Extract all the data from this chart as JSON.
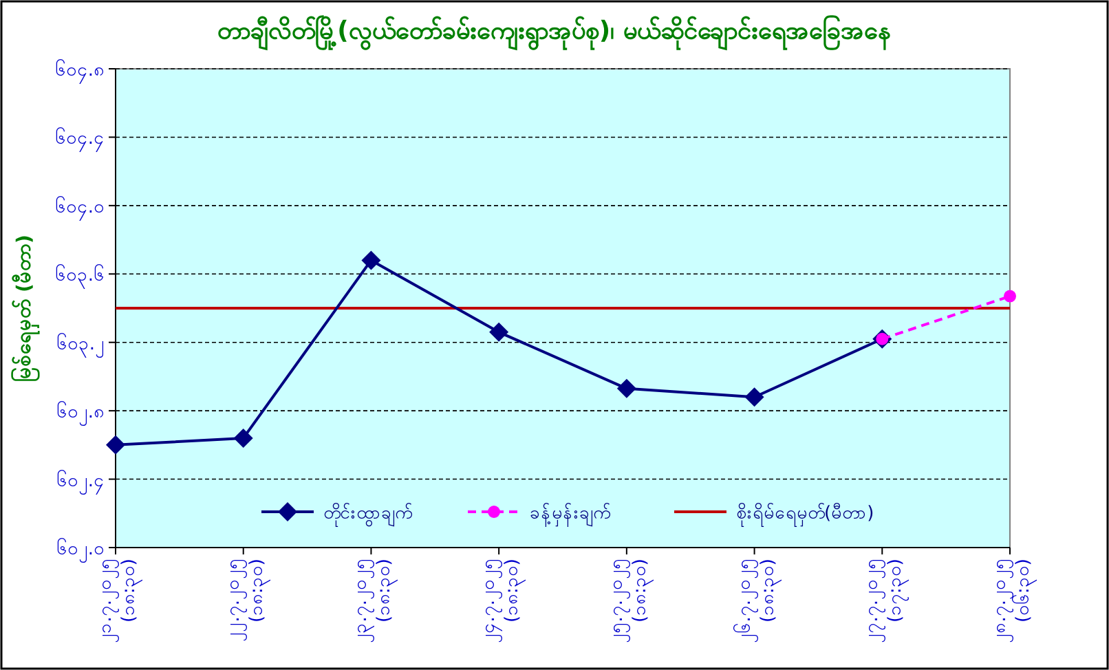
{
  "chart_data": {
    "type": "line",
    "title": "တာချီလိတ်မြို့(လွယ်တော်ခမ်းကျေးရွာအုပ်စု)၊ မယ်ဆိုင်ချောင်းရေအခြေအနေ",
    "ylabel": "မြစ်ရေမှတ် (မီတာ)",
    "categories": [
      "၂၁.၇.၂၀၂၅\n(၁၈:၃၀)",
      "၂၂.၇.၂၀၂၅\n(၁၈:၃၀)",
      "၂၃.၇.၂၀၂၅\n(၁၈:၃၀)",
      "၂၄.၇.၂၀၂၅\n(၁၈:၃၀)",
      "၂၅.၇.၂၀၂၅\n(၁၈:၃၀)",
      "၂၆.၇.၂၀၂၅\n(၁၈:၃၀)",
      "၂၇.၇.၂၀၂၅\n(၁၇:၃၀)",
      "၂၈.၇.၂၀၂၅\n(၀၆:၃၀)"
    ],
    "series": [
      {
        "name": "တိုင်းထွာချက်",
        "color": "#000080",
        "marker": "diamond",
        "line_style": "solid",
        "values": [
          602.6,
          602.64,
          603.68,
          603.26,
          602.93,
          602.88,
          603.22,
          null
        ]
      },
      {
        "name": "ခန့်မှန်းချက်",
        "color": "#ff00ff",
        "marker": "circle",
        "line_style": "dashed",
        "values": [
          null,
          null,
          null,
          null,
          null,
          null,
          603.22,
          603.47
        ]
      }
    ],
    "ref_lines": [
      {
        "axis": "y",
        "value": 603.4,
        "label": "စိုးရိမ်ရေမှတ်(မီတာ)",
        "color": "#c00000",
        "line_style": "solid"
      }
    ],
    "ylim": [
      602.0,
      604.8
    ],
    "yticks": [
      {
        "value": 602.0,
        "label": "၆၀၂.၀"
      },
      {
        "value": 602.4,
        "label": "၆၀၂.၄"
      },
      {
        "value": 602.8,
        "label": "၆၀၂.၈"
      },
      {
        "value": 603.2,
        "label": "၆၀၃.၂"
      },
      {
        "value": 603.6,
        "label": "၆၀၃.၆"
      },
      {
        "value": 604.0,
        "label": "၆၀၄.၀"
      },
      {
        "value": 604.4,
        "label": "၆၀၄.၄"
      },
      {
        "value": 604.8,
        "label": "၆၀၄.၈"
      }
    ],
    "grid": "y",
    "legend": "bottom"
  }
}
